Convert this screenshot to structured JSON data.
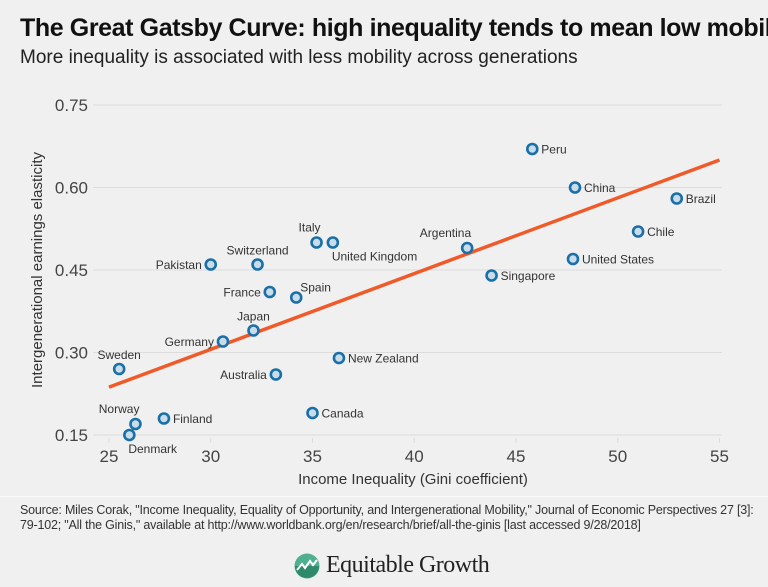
{
  "title": "The Great Gatsby Curve: high inequality tends to mean low mobility",
  "subtitle": "More inequality is associated with less mobility across generations",
  "source": "Source: Miles Corak, \"Income Inequality, Equality of Opportunity, and Intergenerational Mobility,\" Journal of Economic Perspectives 27 [3]: 79-102; \"All the Ginis,\" available at http://www.worldbank.org/en/research/brief/all-the-ginis [last accessed 9/28/2018]",
  "logo_text": "Equitable Growth",
  "colors": {
    "point_stroke": "#1a6fa8",
    "point_fill": "#c9dcea",
    "trend": "#f05a28",
    "grid": "#dcdcdc",
    "logo": "#4fb08f"
  },
  "chart_data": {
    "type": "scatter",
    "xlabel": "Income Inequality (Gini coefficient)",
    "ylabel": "Intergenerational earnings elasticity",
    "xlim": [
      24,
      55
    ],
    "ylim": [
      0.15,
      0.75
    ],
    "xticks": [
      25,
      30,
      35,
      40,
      45,
      50,
      55
    ],
    "yticks": [
      "0.15",
      "0.30",
      "0.45",
      "0.60",
      "0.75"
    ],
    "grid": "horizontal",
    "trendline": {
      "x": [
        25,
        55
      ],
      "y": [
        0.237,
        0.65
      ]
    },
    "points": [
      {
        "label": "Peru",
        "x": 45.8,
        "y": 0.67,
        "pos": "right"
      },
      {
        "label": "China",
        "x": 47.9,
        "y": 0.6,
        "pos": "right"
      },
      {
        "label": "Brazil",
        "x": 52.9,
        "y": 0.58,
        "pos": "right"
      },
      {
        "label": "Chile",
        "x": 51.0,
        "y": 0.52,
        "pos": "right"
      },
      {
        "label": "United States",
        "x": 47.8,
        "y": 0.47,
        "pos": "right"
      },
      {
        "label": "Singapore",
        "x": 43.8,
        "y": 0.44,
        "pos": "right"
      },
      {
        "label": "Argentina",
        "x": 42.6,
        "y": 0.49,
        "pos": "above-left"
      },
      {
        "label": "Italy",
        "x": 35.2,
        "y": 0.5,
        "pos": "above-left"
      },
      {
        "label": "United Kingdom",
        "x": 36.0,
        "y": 0.5,
        "pos": "below-right"
      },
      {
        "label": "Switzerland",
        "x": 32.3,
        "y": 0.46,
        "pos": "above"
      },
      {
        "label": "Pakistan",
        "x": 30.0,
        "y": 0.46,
        "pos": "left"
      },
      {
        "label": "France",
        "x": 32.9,
        "y": 0.41,
        "pos": "left"
      },
      {
        "label": "Spain",
        "x": 34.2,
        "y": 0.4,
        "pos": "above-right"
      },
      {
        "label": "Japan",
        "x": 32.1,
        "y": 0.34,
        "pos": "above"
      },
      {
        "label": "Germany",
        "x": 30.6,
        "y": 0.32,
        "pos": "left"
      },
      {
        "label": "New Zealand",
        "x": 36.3,
        "y": 0.29,
        "pos": "right"
      },
      {
        "label": "Australia",
        "x": 33.2,
        "y": 0.26,
        "pos": "left"
      },
      {
        "label": "Sweden",
        "x": 25.5,
        "y": 0.27,
        "pos": "above"
      },
      {
        "label": "Canada",
        "x": 35.0,
        "y": 0.19,
        "pos": "right"
      },
      {
        "label": "Finland",
        "x": 27.7,
        "y": 0.18,
        "pos": "right"
      },
      {
        "label": "Norway",
        "x": 26.3,
        "y": 0.17,
        "pos": "above-left"
      },
      {
        "label": "Denmark",
        "x": 26.0,
        "y": 0.15,
        "pos": "below-right"
      }
    ]
  }
}
